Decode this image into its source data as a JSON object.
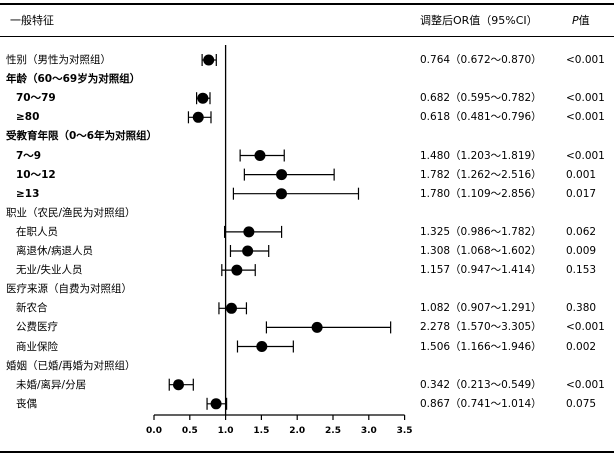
{
  "header": {
    "col_factor": "一般特征",
    "col_or": "调整后OR值（95%CI）",
    "col_p_italic": "P",
    "col_p_rest": "值"
  },
  "chart_data": {
    "type": "forest",
    "reference_line": 1.0,
    "xlim": [
      0,
      3.5
    ],
    "xticks": [
      "0.0",
      "0.5",
      "1.0",
      "1.5",
      "2.0",
      "2.5",
      "3.0",
      "3.5"
    ],
    "rows": [
      {
        "label": "性别（男性为对照组）",
        "bold": false,
        "indent": false,
        "or": 0.764,
        "lo": 0.672,
        "hi": 0.87,
        "or_text": "0.764（0.672～0.870）",
        "p": "<0.001"
      },
      {
        "label": "年龄（60～69岁为对照组）",
        "bold": true,
        "indent": false
      },
      {
        "label": "70～79",
        "bold": true,
        "indent": true,
        "or": 0.682,
        "lo": 0.595,
        "hi": 0.782,
        "or_text": "0.682（0.595～0.782）",
        "p": "<0.001"
      },
      {
        "label": "≥80",
        "bold": true,
        "indent": true,
        "or": 0.618,
        "lo": 0.481,
        "hi": 0.796,
        "or_text": "0.618（0.481～0.796）",
        "p": "<0.001"
      },
      {
        "label": "受教育年限（0～6年为对照组）",
        "bold": true,
        "indent": false
      },
      {
        "label": "7～9",
        "bold": true,
        "indent": true,
        "or": 1.48,
        "lo": 1.203,
        "hi": 1.819,
        "or_text": "1.480（1.203～1.819）",
        "p": "<0.001"
      },
      {
        "label": "10～12",
        "bold": true,
        "indent": true,
        "or": 1.782,
        "lo": 1.262,
        "hi": 2.516,
        "or_text": "1.782（1.262～2.516）",
        "p": "0.001"
      },
      {
        "label": "≥13",
        "bold": true,
        "indent": true,
        "or": 1.78,
        "lo": 1.109,
        "hi": 2.856,
        "or_text": "1.780（1.109～2.856）",
        "p": "0.017"
      },
      {
        "label": "职业（农民/渔民为对照组）",
        "bold": false,
        "indent": false
      },
      {
        "label": "在职人员",
        "bold": false,
        "indent": true,
        "or": 1.325,
        "lo": 0.986,
        "hi": 1.782,
        "or_text": "1.325（0.986～1.782）",
        "p": "0.062"
      },
      {
        "label": "离退休/病退人员",
        "bold": false,
        "indent": true,
        "or": 1.308,
        "lo": 1.068,
        "hi": 1.602,
        "or_text": "1.308（1.068～1.602）",
        "p": "0.009"
      },
      {
        "label": "无业/失业人员",
        "bold": false,
        "indent": true,
        "or": 1.157,
        "lo": 0.947,
        "hi": 1.414,
        "or_text": "1.157（0.947～1.414）",
        "p": "0.153"
      },
      {
        "label": "医疗来源（自费为对照组）",
        "bold": false,
        "indent": false
      },
      {
        "label": "新农合",
        "bold": false,
        "indent": true,
        "or": 1.082,
        "lo": 0.907,
        "hi": 1.291,
        "or_text": "1.082（0.907～1.291）",
        "p": "0.380"
      },
      {
        "label": "公费医疗",
        "bold": false,
        "indent": true,
        "or": 2.278,
        "lo": 1.57,
        "hi": 3.305,
        "or_text": "2.278（1.570～3.305）",
        "p": "<0.001"
      },
      {
        "label": "商业保险",
        "bold": false,
        "indent": true,
        "or": 1.506,
        "lo": 1.166,
        "hi": 1.946,
        "or_text": "1.506（1.166～1.946）",
        "p": "0.002"
      },
      {
        "label": "婚姻（已婚/再婚为对照组）",
        "bold": false,
        "indent": false
      },
      {
        "label": "未婚/离异/分居",
        "bold": false,
        "indent": true,
        "or": 0.342,
        "lo": 0.213,
        "hi": 0.549,
        "or_text": "0.342（0.213～0.549）",
        "p": "<0.001"
      },
      {
        "label": "丧偶",
        "bold": false,
        "indent": true,
        "or": 0.867,
        "lo": 0.741,
        "hi": 1.014,
        "or_text": "0.867（0.741～1.014）",
        "p": "0.075"
      }
    ]
  }
}
